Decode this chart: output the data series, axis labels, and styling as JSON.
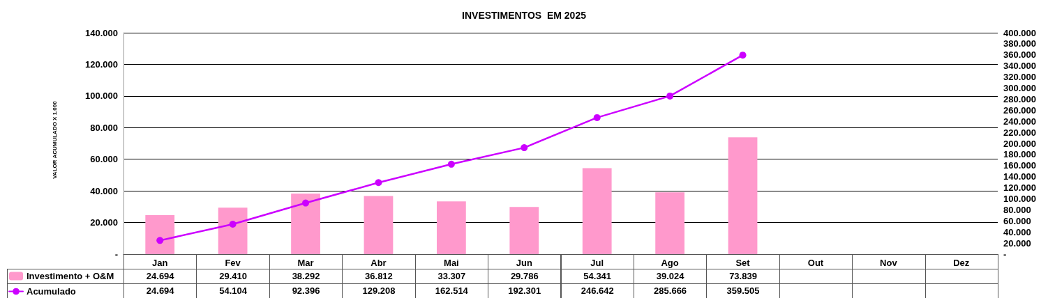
{
  "chart_data": {
    "type": "bar",
    "title": "INVESTIMENTOS  EM 2025",
    "ylabel": "VALOR ACUMULADO X 1.000",
    "categories": [
      "Jan",
      "Fev",
      "Mar",
      "Abr",
      "Mai",
      "Jun",
      "Jul",
      "Ago",
      "Set",
      "Out",
      "Nov",
      "Dez"
    ],
    "series": [
      {
        "name": "Investimento + O&M",
        "color": "#ff99cc",
        "values": [
          24694,
          29410,
          38292,
          36812,
          33307,
          29786,
          54341,
          39024,
          73839,
          null,
          null,
          null
        ],
        "value_labels": [
          "24.694",
          "29.410",
          "38.292",
          "36.812",
          "33.307",
          "29.786",
          "54.341",
          "39.024",
          "73.839",
          null,
          null,
          null
        ]
      },
      {
        "name": "Acumulado",
        "type": "line",
        "axis": "y2",
        "color": "#cc00ff",
        "values": [
          24694,
          54104,
          92396,
          129208,
          162514,
          192301,
          246642,
          285666,
          359505,
          null,
          null,
          null
        ],
        "value_labels": [
          "24.694",
          "54.104",
          "92.396",
          "129.208",
          "162.514",
          "192.301",
          "246.642",
          "285.666",
          "359.505",
          null,
          null,
          null
        ]
      }
    ],
    "ylim": [
      0,
      140000
    ],
    "yticks": [
      {
        "value": 0,
        "label": "-"
      },
      {
        "value": 20000,
        "label": "20.000"
      },
      {
        "value": 40000,
        "label": "40.000"
      },
      {
        "value": 60000,
        "label": "60.000"
      },
      {
        "value": 80000,
        "label": "80.000"
      },
      {
        "value": 100000,
        "label": "100.000"
      },
      {
        "value": 120000,
        "label": "120.000"
      },
      {
        "value": 140000,
        "label": "140.000"
      }
    ],
    "y2lim": [
      0,
      400000
    ],
    "y2ticks": [
      {
        "value": 0,
        "label": "-"
      },
      {
        "value": 20000,
        "label": "20.000"
      },
      {
        "value": 40000,
        "label": "40.000"
      },
      {
        "value": 60000,
        "label": "60.000"
      },
      {
        "value": 80000,
        "label": "80.000"
      },
      {
        "value": 100000,
        "label": "100.000"
      },
      {
        "value": 120000,
        "label": "120.000"
      },
      {
        "value": 140000,
        "label": "140.000"
      },
      {
        "value": 160000,
        "label": "160.000"
      },
      {
        "value": 180000,
        "label": "180.000"
      },
      {
        "value": 200000,
        "label": "200.000"
      },
      {
        "value": 220000,
        "label": "220.000"
      },
      {
        "value": 240000,
        "label": "240.000"
      },
      {
        "value": 260000,
        "label": "260.000"
      },
      {
        "value": 280000,
        "label": "280.000"
      },
      {
        "value": 300000,
        "label": "300.000"
      },
      {
        "value": 320000,
        "label": "320.000"
      },
      {
        "value": 340000,
        "label": "340.000"
      },
      {
        "value": 360000,
        "label": "360.000"
      },
      {
        "value": 380000,
        "label": "380.000"
      },
      {
        "value": 400000,
        "label": "400.000"
      }
    ],
    "grid": "y",
    "legend": "bottom left",
    "marker": "circle",
    "line_style": "solid"
  }
}
